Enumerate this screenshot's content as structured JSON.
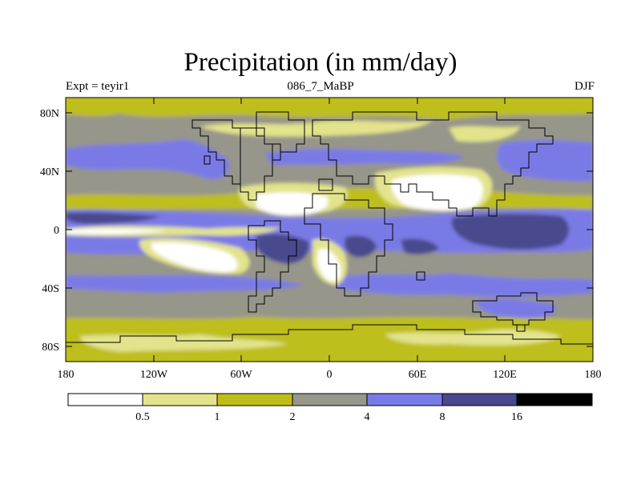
{
  "title": "Precipitation (in mm/day)",
  "subtitle_left": "Expt = teyir1",
  "subtitle_center": "086_7_MaBP",
  "subtitle_right": "DJF",
  "lat_ticks": [
    "80N",
    "40N",
    "0",
    "40S",
    "80S"
  ],
  "lon_ticks": [
    "180",
    "120W",
    "60W",
    "0",
    "60E",
    "120E",
    "180"
  ],
  "colorbar": {
    "colors": [
      "#ffffff",
      "#e3e38c",
      "#bebe1a",
      "#96968a",
      "#7a7ae6",
      "#48488e",
      "#000000"
    ],
    "labels": [
      "0.5",
      "1",
      "2",
      "4",
      "8",
      "16"
    ]
  },
  "colors": {
    "lt1": "#ffffff",
    "c1": "#e3e38c",
    "c2": "#bebe1a",
    "c3": "#96968a",
    "c4": "#7a7ae6",
    "c5": "#48488e",
    "c6": "#000000"
  }
}
